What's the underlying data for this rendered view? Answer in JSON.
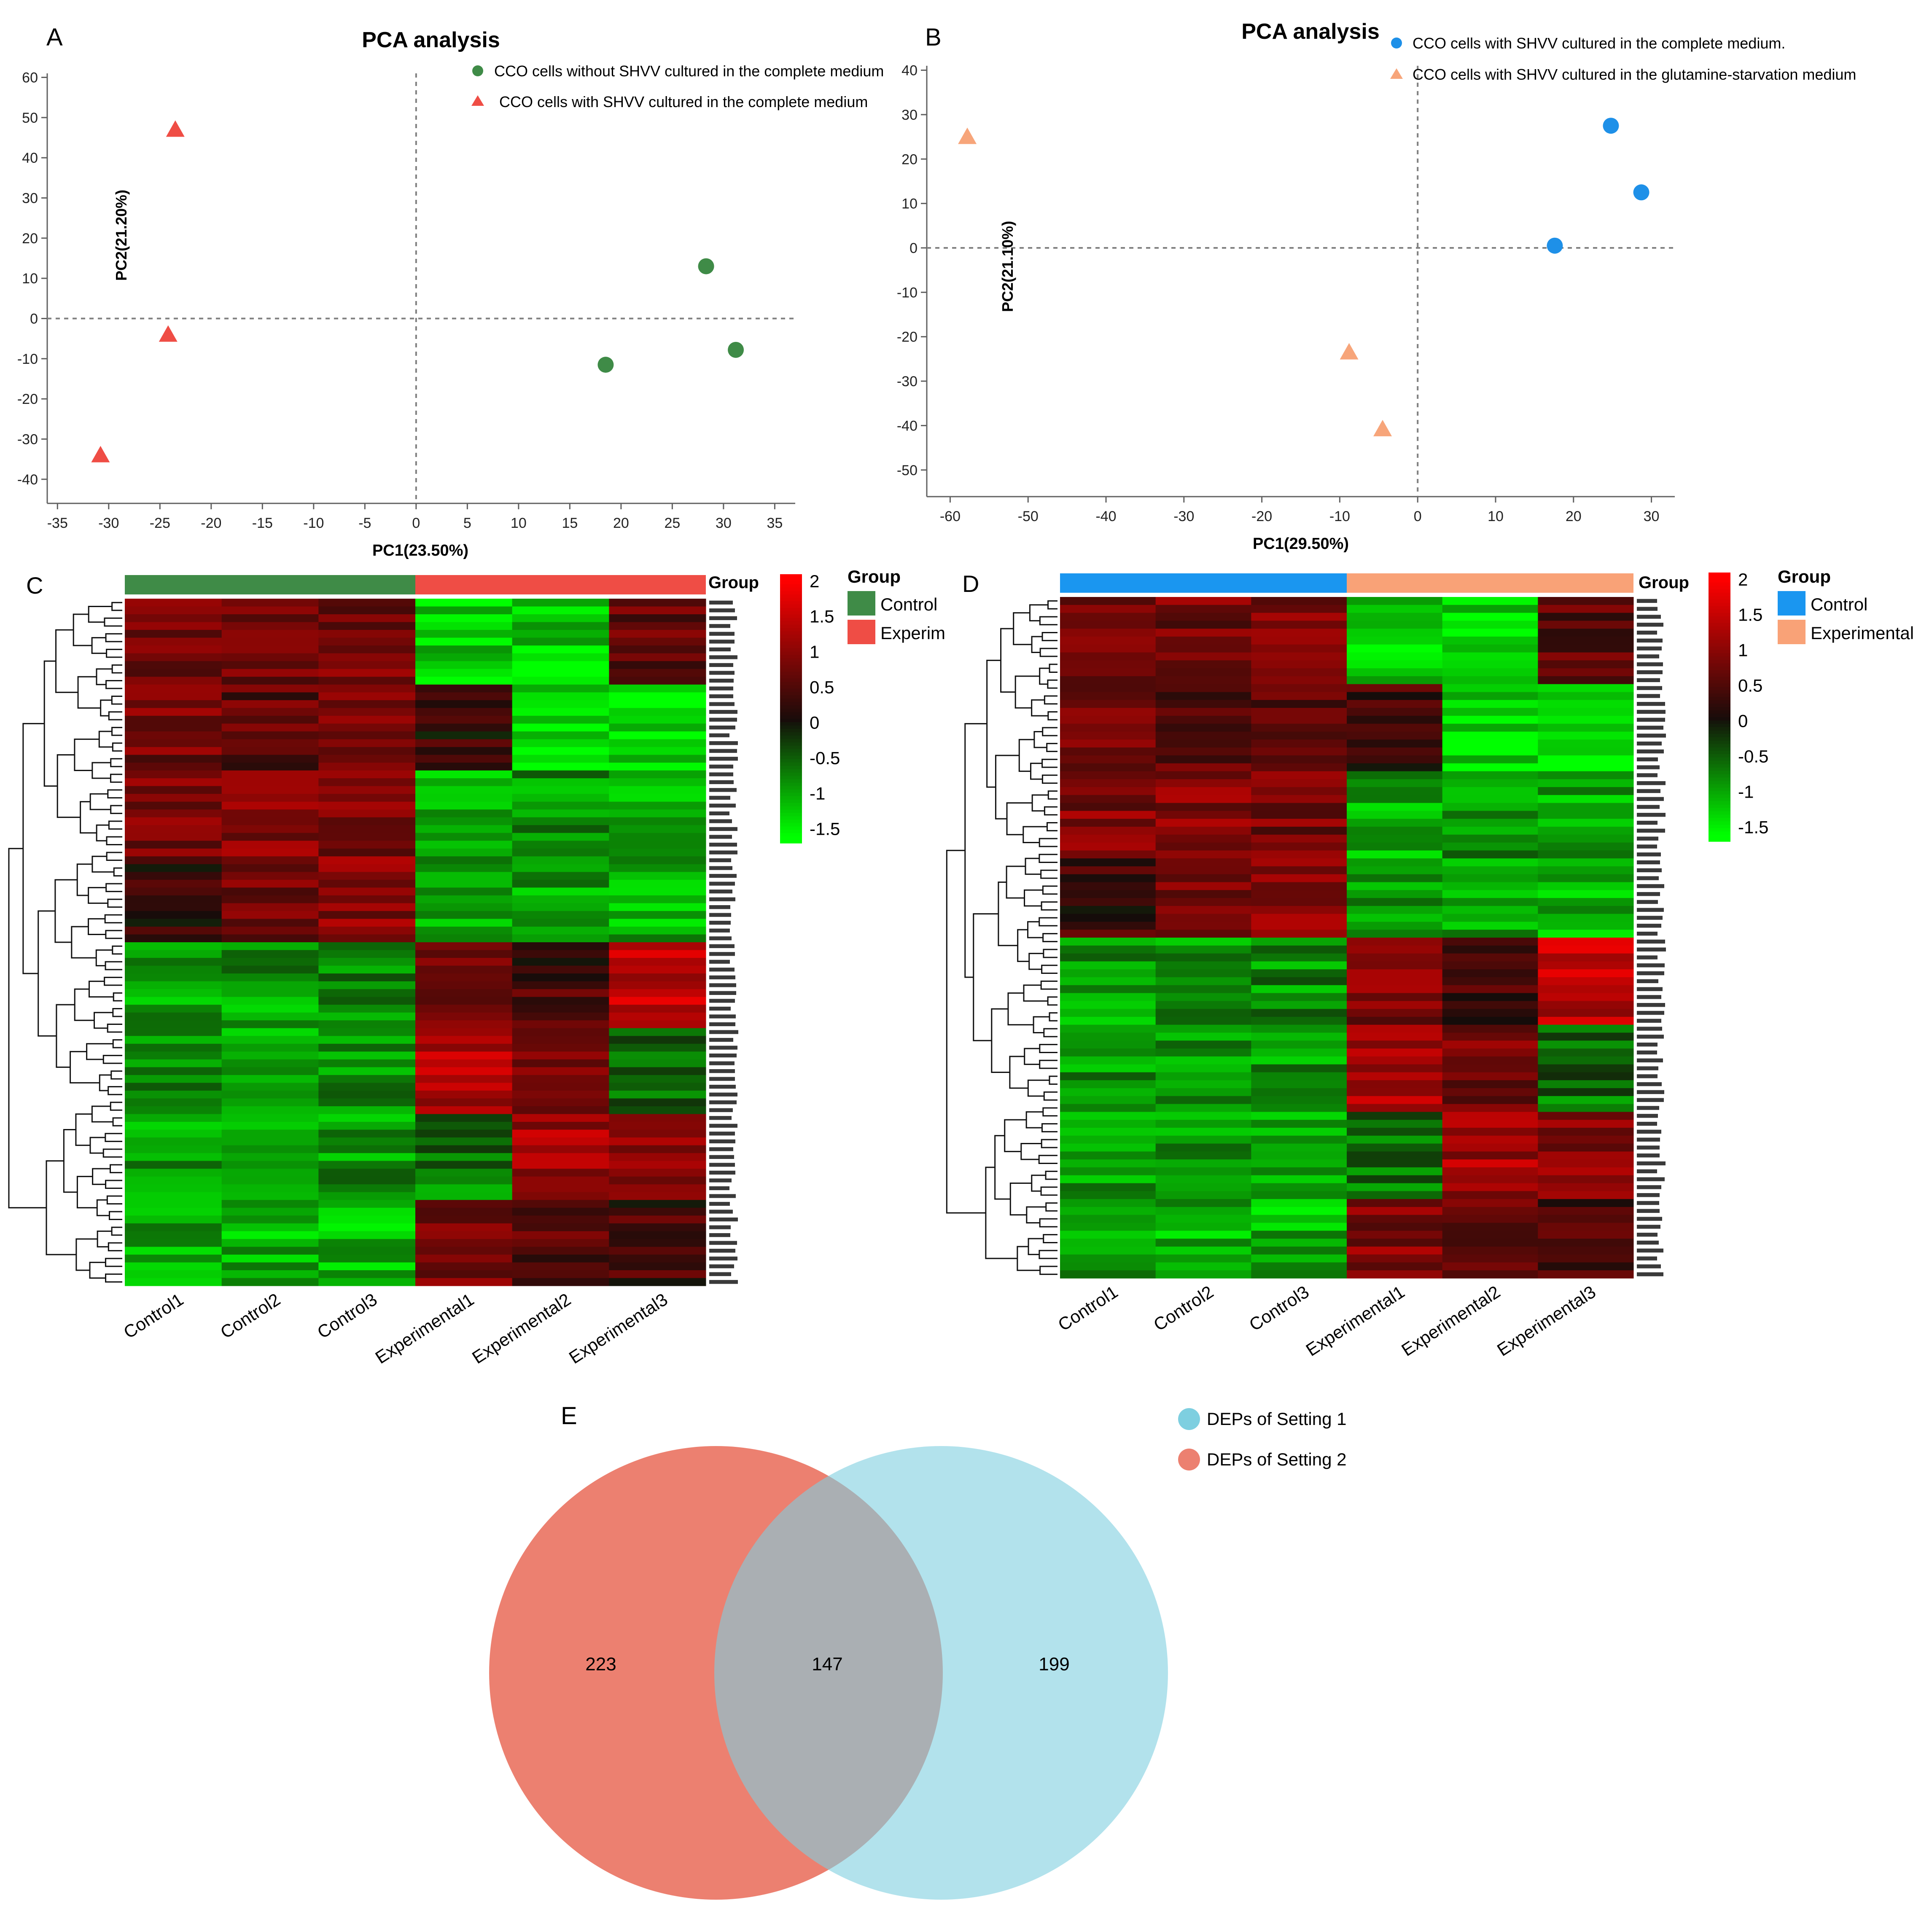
{
  "chart_data": [
    {
      "panel": "A",
      "type": "scatter",
      "title": "PCA analysis",
      "xlabel": "PC1(23.50%)",
      "ylabel": "PC2(21.20%)",
      "xlim": [
        -36,
        37
      ],
      "ylim": [
        -46,
        61
      ],
      "xticks": [
        -35,
        -30,
        -25,
        -20,
        -15,
        -10,
        -5,
        0,
        5,
        10,
        15,
        20,
        25,
        30,
        35
      ],
      "yticks": [
        60,
        50,
        40,
        30,
        20,
        10,
        0,
        -10,
        -20,
        -30,
        -40
      ],
      "legend": "top-right",
      "series": [
        {
          "name": "CCO cells without SHVV cultured in the complete medium",
          "marker": "circle",
          "color": "#3f8b47",
          "points": [
            [
              28.3,
              13.0
            ],
            [
              18.5,
              -11.5
            ],
            [
              31.2,
              -7.8
            ]
          ]
        },
        {
          "name": "CCO cells with SHVV cultured in the complete medium",
          "marker": "triangle",
          "color": "#ef4d45",
          "points": [
            [
              -23.5,
              47.0
            ],
            [
              -24.2,
              -4.0
            ],
            [
              -30.8,
              -34.0
            ]
          ]
        }
      ]
    },
    {
      "panel": "B",
      "type": "scatter",
      "title": "PCA analysis",
      "xlabel": "PC1(29.50%)",
      "ylabel": "PC2(21.10%)",
      "xlim": [
        -63,
        33
      ],
      "ylim": [
        -56,
        41
      ],
      "xticks": [
        -60,
        -50,
        -40,
        -30,
        -20,
        -10,
        0,
        10,
        20,
        30
      ],
      "yticks": [
        40,
        30,
        20,
        10,
        0,
        -10,
        -20,
        -30,
        -40,
        -50
      ],
      "legend": "top-right",
      "series": [
        {
          "name": "CCO cells with SHVV cultured in the complete medium.",
          "marker": "circle",
          "color": "#1e90e8",
          "points": [
            [
              24.8,
              27.5
            ],
            [
              28.7,
              12.5
            ],
            [
              17.6,
              0.5
            ]
          ]
        },
        {
          "name": "CCO cells with SHVV cultured in the glutamine-starvation medium",
          "marker": "triangle",
          "color": "#f7a57a",
          "points": [
            [
              -57.8,
              25.0
            ],
            [
              -8.8,
              -23.5
            ],
            [
              -4.5,
              -40.8
            ]
          ]
        }
      ]
    },
    {
      "panel": "C",
      "type": "heatmap",
      "columns": [
        "Control1",
        "Control2",
        "Control3",
        "Experimental1",
        "Experimental2",
        "Experimental3"
      ],
      "n_rows": 88,
      "seed": 17,
      "group_label": "Group",
      "groups": [
        {
          "name": "Control",
          "color": "#3f8b47"
        },
        {
          "name": "Experim",
          "color": "#ef4d45"
        }
      ],
      "scale_ticks": [
        "2",
        "1.5",
        "1",
        "0.5",
        "0",
        "-0.5",
        "-1",
        "-1.5"
      ],
      "scale_range": [
        -1.7,
        2.1
      ]
    },
    {
      "panel": "D",
      "type": "heatmap",
      "columns": [
        "Control1",
        "Control2",
        "Control3",
        "Experimental1",
        "Experimental2",
        "Experimental3"
      ],
      "n_rows": 86,
      "seed": 41,
      "group_label": "Group",
      "groups": [
        {
          "name": "Control",
          "color": "#1a96f0"
        },
        {
          "name": "Experimental",
          "color": "#f9a277"
        }
      ],
      "scale_ticks": [
        "2",
        "1.5",
        "1",
        "0.5",
        "0",
        "-0.5",
        "-1",
        "-1.5"
      ],
      "scale_range": [
        -1.7,
        2.1
      ]
    },
    {
      "panel": "E",
      "type": "venn",
      "sets": [
        {
          "name": "DEPs of Setting 1",
          "color": "#7ecfe0"
        },
        {
          "name": "DEPs of Setting 2",
          "color": "#ec8070"
        }
      ],
      "only_setting2": "223",
      "intersection": "147",
      "only_setting1": "199"
    }
  ],
  "panel_letters": [
    "A",
    "B",
    "C",
    "D",
    "E"
  ]
}
